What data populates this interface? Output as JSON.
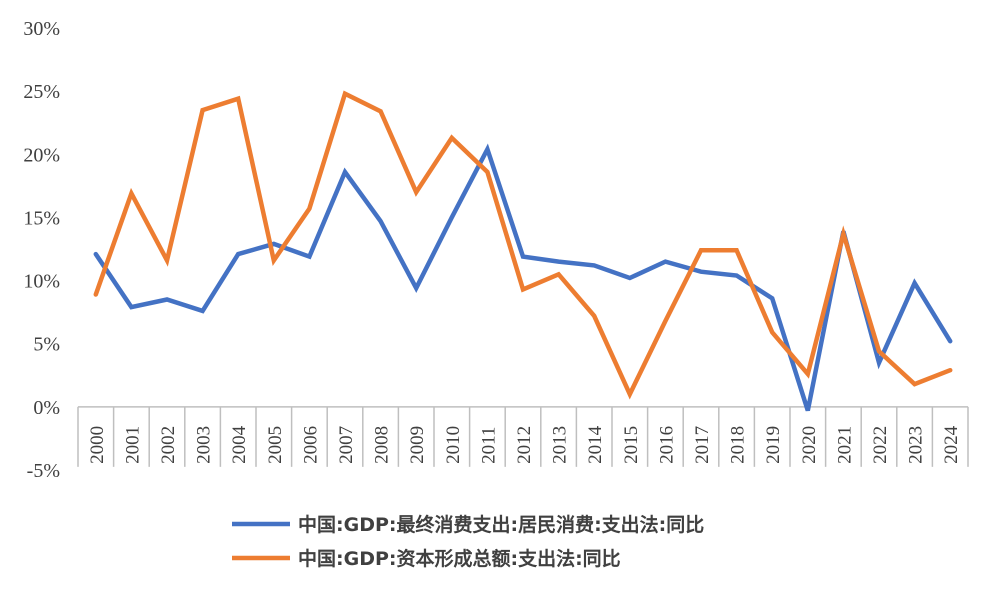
{
  "chart_data": {
    "type": "line",
    "x": [
      "2000",
      "2001",
      "2002",
      "2003",
      "2004",
      "2005",
      "2006",
      "2007",
      "2008",
      "2009",
      "2010",
      "2011",
      "2012",
      "2013",
      "2014",
      "2015",
      "2016",
      "2017",
      "2018",
      "2019",
      "2020",
      "2021",
      "2022",
      "2023",
      "2024"
    ],
    "y_ticks": [
      "30%",
      "25%",
      "20%",
      "15%",
      "10%",
      "5%",
      "0%",
      "-5%"
    ],
    "ylim": [
      -5,
      30
    ],
    "grid": false,
    "legend_position": "bottom",
    "series": [
      {
        "name": "中国:GDP:最终消费支出:居民消费:支出法:同比",
        "color": "#4472C4",
        "values": [
          12.1,
          7.9,
          8.5,
          7.6,
          12.1,
          12.9,
          11.9,
          18.6,
          14.7,
          9.4,
          15.0,
          20.4,
          11.9,
          11.5,
          11.2,
          10.2,
          11.5,
          10.7,
          10.4,
          8.6,
          -0.3,
          13.9,
          3.5,
          9.8,
          5.2
        ]
      },
      {
        "name": "中国:GDP:资本形成总额:支出法:同比",
        "color": "#ED7D31",
        "values": [
          8.9,
          16.9,
          11.6,
          23.5,
          24.4,
          11.6,
          15.7,
          24.8,
          23.4,
          17.0,
          21.3,
          18.6,
          9.3,
          10.5,
          7.2,
          1.0,
          6.8,
          12.4,
          12.4,
          5.9,
          2.6,
          13.7,
          4.4,
          1.8,
          2.9
        ]
      }
    ]
  }
}
